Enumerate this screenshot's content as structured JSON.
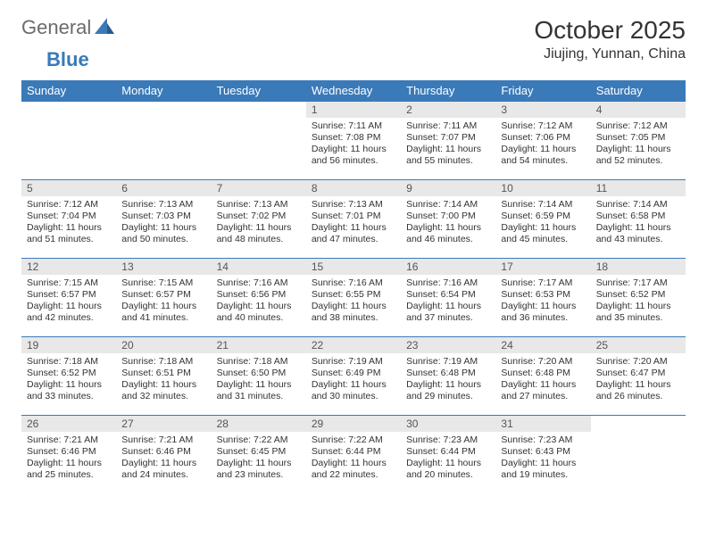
{
  "logo": {
    "text1": "General",
    "text2": "Blue"
  },
  "title": "October 2025",
  "location": "Jiujing, Yunnan, China",
  "colors": {
    "header_bg": "#3a7ab8",
    "header_text": "#ffffff",
    "daynum_bg": "#e8e8e8",
    "border": "#3a7ab8",
    "logo_gray": "#6b6b6b",
    "logo_blue": "#3a7ab8"
  },
  "weekdays": [
    "Sunday",
    "Monday",
    "Tuesday",
    "Wednesday",
    "Thursday",
    "Friday",
    "Saturday"
  ],
  "weeks": [
    [
      {
        "n": "",
        "sr": "",
        "ss": "",
        "dl": ""
      },
      {
        "n": "",
        "sr": "",
        "ss": "",
        "dl": ""
      },
      {
        "n": "",
        "sr": "",
        "ss": "",
        "dl": ""
      },
      {
        "n": "1",
        "sr": "7:11 AM",
        "ss": "7:08 PM",
        "dl": "11 hours and 56 minutes."
      },
      {
        "n": "2",
        "sr": "7:11 AM",
        "ss": "7:07 PM",
        "dl": "11 hours and 55 minutes."
      },
      {
        "n": "3",
        "sr": "7:12 AM",
        "ss": "7:06 PM",
        "dl": "11 hours and 54 minutes."
      },
      {
        "n": "4",
        "sr": "7:12 AM",
        "ss": "7:05 PM",
        "dl": "11 hours and 52 minutes."
      }
    ],
    [
      {
        "n": "5",
        "sr": "7:12 AM",
        "ss": "7:04 PM",
        "dl": "11 hours and 51 minutes."
      },
      {
        "n": "6",
        "sr": "7:13 AM",
        "ss": "7:03 PM",
        "dl": "11 hours and 50 minutes."
      },
      {
        "n": "7",
        "sr": "7:13 AM",
        "ss": "7:02 PM",
        "dl": "11 hours and 48 minutes."
      },
      {
        "n": "8",
        "sr": "7:13 AM",
        "ss": "7:01 PM",
        "dl": "11 hours and 47 minutes."
      },
      {
        "n": "9",
        "sr": "7:14 AM",
        "ss": "7:00 PM",
        "dl": "11 hours and 46 minutes."
      },
      {
        "n": "10",
        "sr": "7:14 AM",
        "ss": "6:59 PM",
        "dl": "11 hours and 45 minutes."
      },
      {
        "n": "11",
        "sr": "7:14 AM",
        "ss": "6:58 PM",
        "dl": "11 hours and 43 minutes."
      }
    ],
    [
      {
        "n": "12",
        "sr": "7:15 AM",
        "ss": "6:57 PM",
        "dl": "11 hours and 42 minutes."
      },
      {
        "n": "13",
        "sr": "7:15 AM",
        "ss": "6:57 PM",
        "dl": "11 hours and 41 minutes."
      },
      {
        "n": "14",
        "sr": "7:16 AM",
        "ss": "6:56 PM",
        "dl": "11 hours and 40 minutes."
      },
      {
        "n": "15",
        "sr": "7:16 AM",
        "ss": "6:55 PM",
        "dl": "11 hours and 38 minutes."
      },
      {
        "n": "16",
        "sr": "7:16 AM",
        "ss": "6:54 PM",
        "dl": "11 hours and 37 minutes."
      },
      {
        "n": "17",
        "sr": "7:17 AM",
        "ss": "6:53 PM",
        "dl": "11 hours and 36 minutes."
      },
      {
        "n": "18",
        "sr": "7:17 AM",
        "ss": "6:52 PM",
        "dl": "11 hours and 35 minutes."
      }
    ],
    [
      {
        "n": "19",
        "sr": "7:18 AM",
        "ss": "6:52 PM",
        "dl": "11 hours and 33 minutes."
      },
      {
        "n": "20",
        "sr": "7:18 AM",
        "ss": "6:51 PM",
        "dl": "11 hours and 32 minutes."
      },
      {
        "n": "21",
        "sr": "7:18 AM",
        "ss": "6:50 PM",
        "dl": "11 hours and 31 minutes."
      },
      {
        "n": "22",
        "sr": "7:19 AM",
        "ss": "6:49 PM",
        "dl": "11 hours and 30 minutes."
      },
      {
        "n": "23",
        "sr": "7:19 AM",
        "ss": "6:48 PM",
        "dl": "11 hours and 29 minutes."
      },
      {
        "n": "24",
        "sr": "7:20 AM",
        "ss": "6:48 PM",
        "dl": "11 hours and 27 minutes."
      },
      {
        "n": "25",
        "sr": "7:20 AM",
        "ss": "6:47 PM",
        "dl": "11 hours and 26 minutes."
      }
    ],
    [
      {
        "n": "26",
        "sr": "7:21 AM",
        "ss": "6:46 PM",
        "dl": "11 hours and 25 minutes."
      },
      {
        "n": "27",
        "sr": "7:21 AM",
        "ss": "6:46 PM",
        "dl": "11 hours and 24 minutes."
      },
      {
        "n": "28",
        "sr": "7:22 AM",
        "ss": "6:45 PM",
        "dl": "11 hours and 23 minutes."
      },
      {
        "n": "29",
        "sr": "7:22 AM",
        "ss": "6:44 PM",
        "dl": "11 hours and 22 minutes."
      },
      {
        "n": "30",
        "sr": "7:23 AM",
        "ss": "6:44 PM",
        "dl": "11 hours and 20 minutes."
      },
      {
        "n": "31",
        "sr": "7:23 AM",
        "ss": "6:43 PM",
        "dl": "11 hours and 19 minutes."
      },
      {
        "n": "",
        "sr": "",
        "ss": "",
        "dl": ""
      }
    ]
  ],
  "labels": {
    "sunrise": "Sunrise:",
    "sunset": "Sunset:",
    "daylight": "Daylight:"
  }
}
